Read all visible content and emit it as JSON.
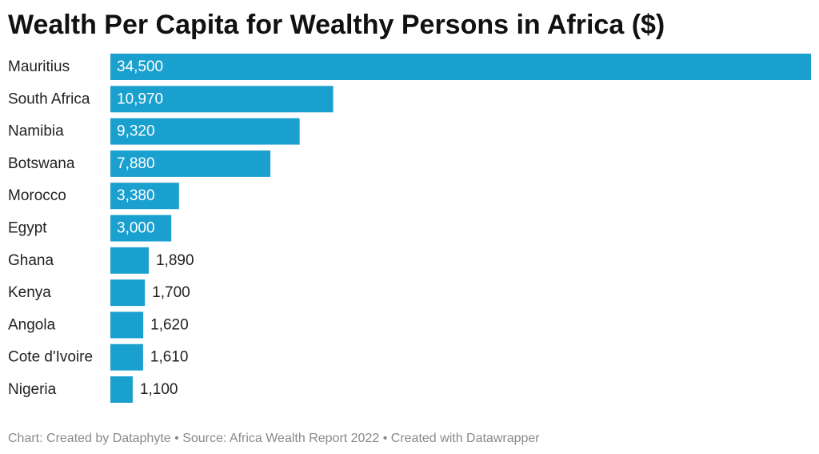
{
  "title": "Wealth Per Capita for Wealthy Persons in Africa ($)",
  "footer": {
    "chart_credit": "Chart: Created by Dataphyte",
    "separator": "•",
    "source": "Source: Africa Wealth Report 2022",
    "tool": "Created with Datawrapper"
  },
  "colors": {
    "bar": "#1aa0cf",
    "label_inside": "#ffffff",
    "label_outside": "#222222",
    "footer": "#8a8a8a"
  },
  "chart_data": {
    "type": "bar",
    "orientation": "horizontal",
    "title": "Wealth Per Capita for Wealthy Persons in Africa ($)",
    "categories": [
      "Mauritius",
      "South Africa",
      "Namibia",
      "Botswana",
      "Morocco",
      "Egypt",
      "Ghana",
      "Kenya",
      "Angola",
      "Cote d'Ivoire",
      "Nigeria"
    ],
    "values": [
      34500,
      10970,
      9320,
      7880,
      3380,
      3000,
      1890,
      1700,
      1620,
      1610,
      1100
    ],
    "value_labels": [
      "34,500",
      "10,970",
      "9,320",
      "7,880",
      "3,380",
      "3,000",
      "1,890",
      "1,700",
      "1,620",
      "1,610",
      "1,100"
    ],
    "xlim": [
      0,
      34500
    ],
    "grid": false,
    "legend": "none"
  }
}
